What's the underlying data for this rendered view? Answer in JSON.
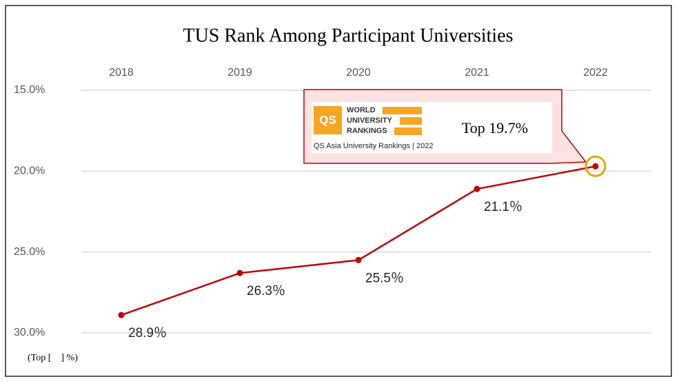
{
  "chart_data": {
    "type": "line",
    "title": "TUS Rank Among Participant Universities",
    "y_label": "(Top [　] %)",
    "categories": [
      "2018",
      "2019",
      "2020",
      "2021",
      "2022"
    ],
    "values": [
      28.9,
      26.3,
      25.5,
      21.1,
      19.7
    ],
    "value_labels": [
      "28.9％",
      "26.3％",
      "25.5％",
      "21.1％",
      "Top 19.7%"
    ],
    "color": "#c00000",
    "ylim": [
      30,
      15
    ],
    "yticks": [
      {
        "value": 15,
        "label": "15.0%"
      },
      {
        "value": 20,
        "label": "20.0%"
      },
      {
        "value": 25,
        "label": "25.0%"
      },
      {
        "value": 30,
        "label": "30.0%"
      }
    ],
    "grid": true,
    "annotation": {
      "logo": "QS",
      "lines": [
        "WORLD",
        "UNIVERSITY",
        "RANKINGS"
      ],
      "caption": "QS Asia University Rankings | 2022"
    }
  }
}
